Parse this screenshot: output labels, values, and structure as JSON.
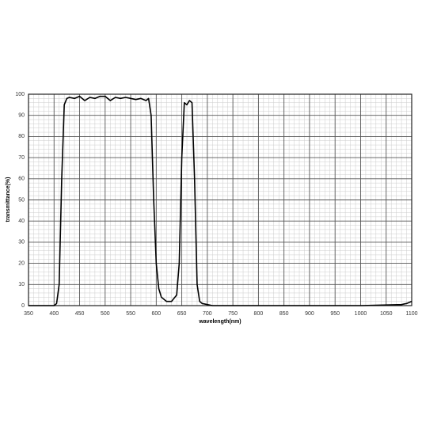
{
  "chart_data": {
    "type": "line",
    "x_label": "wavelength(nm)",
    "y_label": "transmittance(%)",
    "x": [
      350,
      400,
      405,
      410,
      415,
      420,
      425,
      430,
      440,
      450,
      460,
      470,
      480,
      490,
      500,
      510,
      520,
      530,
      540,
      550,
      560,
      570,
      580,
      585,
      590,
      595,
      600,
      605,
      610,
      620,
      630,
      640,
      645,
      650,
      655,
      660,
      665,
      670,
      675,
      680,
      685,
      690,
      700,
      710,
      800,
      900,
      1000,
      1050,
      1080,
      1090,
      1100
    ],
    "series": [
      {
        "name": "transmittance",
        "color": "#000000",
        "values": [
          0,
          0,
          1,
          10,
          60,
          95,
          98,
          98.5,
          98,
          99,
          97,
          98.5,
          98,
          99,
          99,
          97,
          98.5,
          98,
          98.5,
          98,
          97.5,
          98,
          97,
          98,
          90,
          50,
          20,
          8,
          4,
          2,
          2,
          5,
          20,
          70,
          96,
          95,
          97,
          96,
          60,
          10,
          2,
          1,
          0.5,
          0,
          0,
          0,
          0,
          0.3,
          0.5,
          1,
          2
        ]
      }
    ],
    "xlim": [
      350,
      1100
    ],
    "ylim": [
      0,
      100
    ],
    "xticks": [
      350,
      400,
      450,
      500,
      550,
      600,
      650,
      700,
      750,
      800,
      850,
      900,
      950,
      1000,
      1050,
      1100
    ],
    "yticks": [
      0,
      10,
      20,
      30,
      40,
      50,
      60,
      70,
      80,
      90,
      100
    ],
    "grid": true,
    "minor_grid": true
  }
}
